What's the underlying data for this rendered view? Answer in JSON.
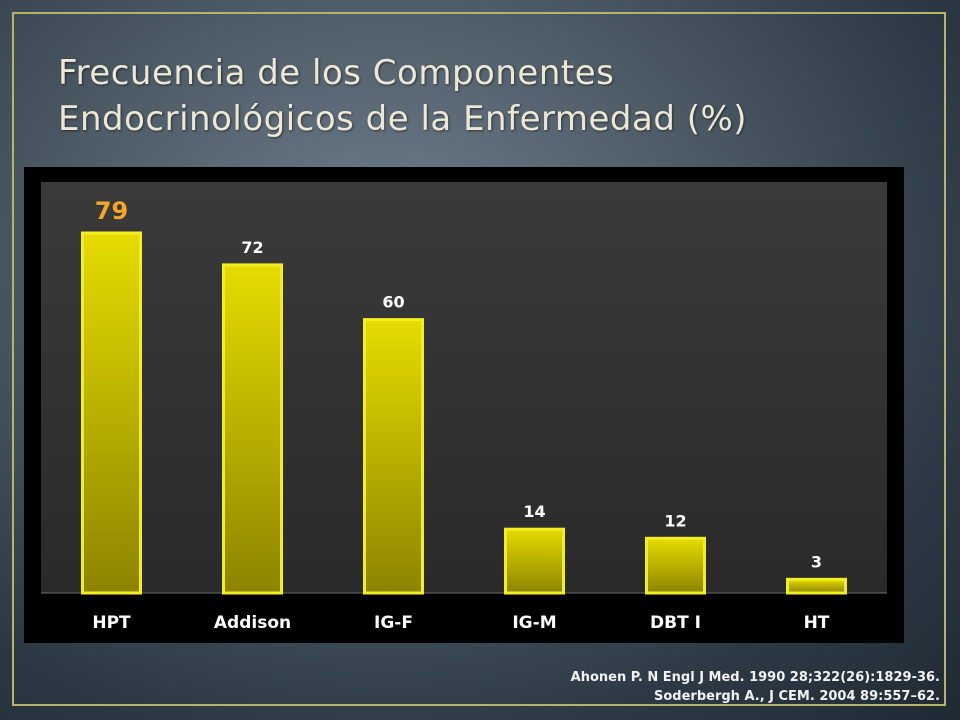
{
  "slide": {
    "title_line1": "Frecuencia de los Componentes",
    "title_line2": "Endocrinológicos de la Enfermedad (%)",
    "source_line1": "Ahonen P. N Engl J Med. 1990 28;322(26):1829-36.",
    "source_line2": "Soderbergh A., J CEM. 2004 89:557–62."
  },
  "colors": {
    "bar_fill": "#d8cc00",
    "bar_highlight": "#f2ee22",
    "bar_dark": "#8a8200",
    "highlight_label": "#f5a623",
    "label": "#ffffff",
    "plot_bg": "#333333"
  },
  "chart_data": {
    "type": "bar",
    "title": "",
    "xlabel": "",
    "ylabel": "",
    "categories": [
      "HPT",
      "Addison",
      "IG-F",
      "IG-M",
      "DBT I",
      "HT"
    ],
    "values": [
      79,
      72,
      60,
      14,
      12,
      3
    ],
    "data_labels": [
      "79",
      "72",
      "60",
      "14",
      "12",
      "3"
    ],
    "highlighted_index": 0,
    "ylim": [
      0,
      90
    ],
    "grid": false,
    "legend": "none"
  }
}
